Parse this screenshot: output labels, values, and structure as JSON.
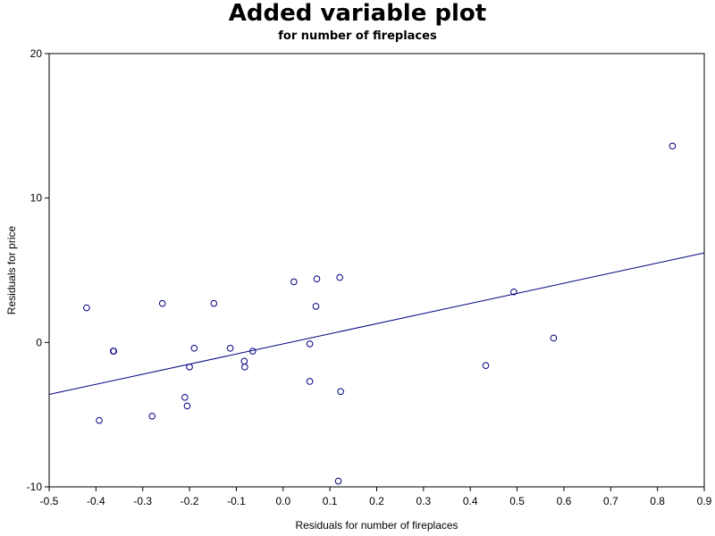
{
  "chart_data": {
    "type": "scatter",
    "title": "Added variable plot",
    "subtitle": "for number of fireplaces",
    "xlabel": "Residuals for number of fireplaces",
    "ylabel": "Residuals for price",
    "xlim": [
      -0.5,
      0.9
    ],
    "ylim": [
      -10,
      20
    ],
    "xticks": [
      -0.5,
      -0.4,
      -0.3,
      -0.2,
      -0.1,
      0,
      0.1,
      0.2,
      0.3,
      0.4,
      0.5,
      0.6,
      0.7,
      0.8,
      0.9
    ],
    "xtick_labels": [
      "-0.5",
      "-0.4",
      "-0.3",
      "-0.2",
      "-0.1",
      "0.0",
      "0.1",
      "0.2",
      "0.3",
      "0.4",
      "0.5",
      "0.6",
      "0.7",
      "0.8",
      "0.9"
    ],
    "yticks": [
      -10,
      0,
      10,
      20
    ],
    "ytick_labels": [
      "-10",
      "0",
      "10",
      "20"
    ],
    "grid": false,
    "marker_color": "#000080",
    "line_color": "#000080",
    "points": [
      {
        "x": -0.42,
        "y": 2.4
      },
      {
        "x": -0.393,
        "y": -5.4
      },
      {
        "x": -0.363,
        "y": -0.6
      },
      {
        "x": -0.362,
        "y": -0.6
      },
      {
        "x": -0.28,
        "y": -5.1
      },
      {
        "x": -0.258,
        "y": 2.7
      },
      {
        "x": -0.21,
        "y": -3.8
      },
      {
        "x": -0.205,
        "y": -4.4
      },
      {
        "x": -0.2,
        "y": -1.7
      },
      {
        "x": -0.19,
        "y": -0.4
      },
      {
        "x": -0.148,
        "y": 2.7
      },
      {
        "x": -0.113,
        "y": -0.4
      },
      {
        "x": -0.083,
        "y": -1.3
      },
      {
        "x": -0.082,
        "y": -1.7
      },
      {
        "x": -0.065,
        "y": -0.6
      },
      {
        "x": 0.023,
        "y": 4.2
      },
      {
        "x": 0.057,
        "y": -2.7
      },
      {
        "x": 0.057,
        "y": -0.1
      },
      {
        "x": 0.07,
        "y": 2.5
      },
      {
        "x": 0.072,
        "y": 4.4
      },
      {
        "x": 0.118,
        "y": -9.6
      },
      {
        "x": 0.121,
        "y": 4.5
      },
      {
        "x": 0.123,
        "y": -3.4
      },
      {
        "x": 0.433,
        "y": -1.6
      },
      {
        "x": 0.493,
        "y": 3.5
      },
      {
        "x": 0.578,
        "y": 0.3
      },
      {
        "x": 0.832,
        "y": 13.6
      }
    ],
    "fit_line": {
      "x": [
        -0.5,
        0.9
      ],
      "y": [
        -3.6,
        6.2
      ]
    }
  }
}
